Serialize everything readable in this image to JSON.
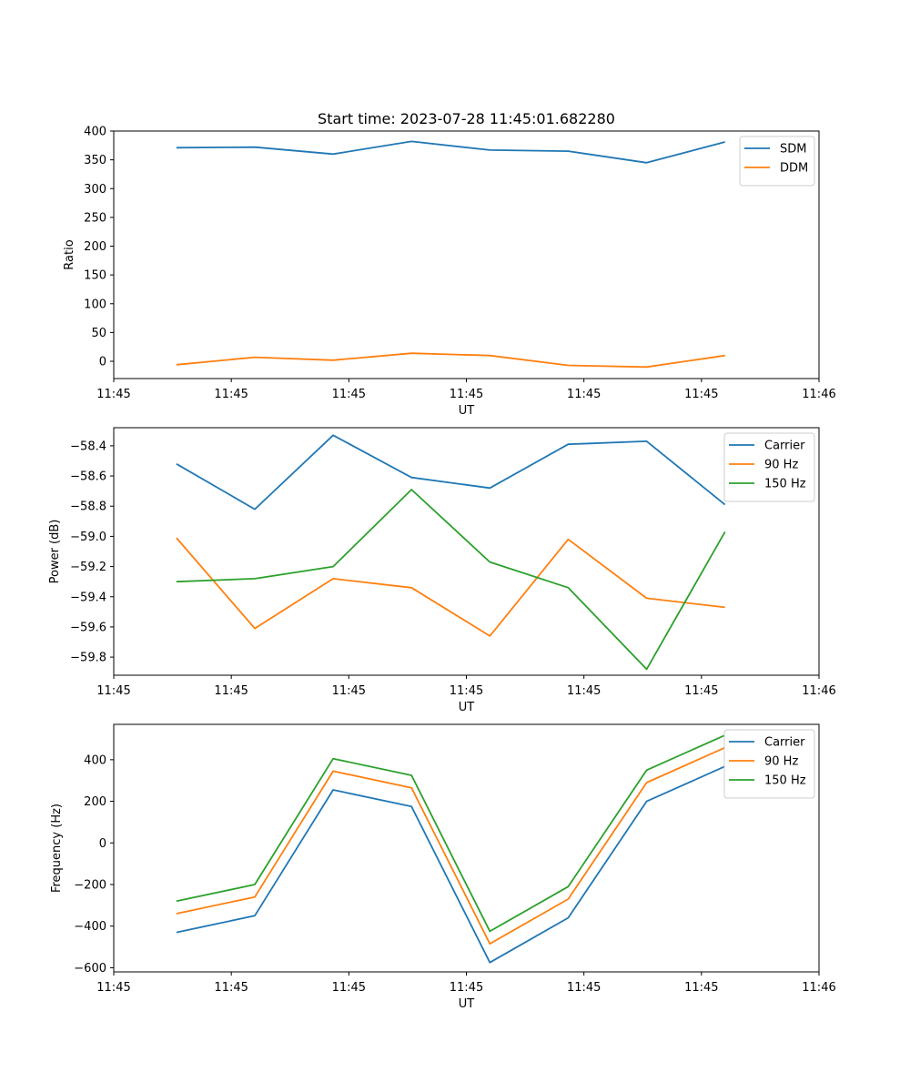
{
  "chart_data": [
    {
      "type": "line",
      "title": "Start time: 2023-07-28 11:45:01.682280",
      "xlabel": "UT",
      "ylabel": "Ratio",
      "x": [
        1,
        2,
        3,
        4,
        5,
        6,
        7,
        8
      ],
      "xlim": [
        0.2,
        9.2
      ],
      "xticks": [
        0.2,
        1.7,
        3.2,
        4.7,
        6.2,
        7.7,
        9.2
      ],
      "xtick_labels": [
        "11:45",
        "11:45",
        "11:45",
        "11:45",
        "11:45",
        "11:45",
        "11:46"
      ],
      "ylim": [
        -30,
        400
      ],
      "yticks": [
        0,
        50,
        100,
        150,
        200,
        250,
        300,
        350,
        400
      ],
      "legend_position": "top-right",
      "series": [
        {
          "name": "SDM",
          "color": "#1f77b4",
          "values": [
            371,
            372,
            360,
            382,
            367,
            365,
            345,
            381
          ]
        },
        {
          "name": "DDM",
          "color": "#ff7f0e",
          "values": [
            -6,
            7,
            2,
            14,
            10,
            -7,
            -10,
            10
          ]
        }
      ]
    },
    {
      "type": "line",
      "title": "",
      "xlabel": "UT",
      "ylabel": "Power (dB)",
      "x": [
        1,
        2,
        3,
        4,
        5,
        6,
        7,
        8
      ],
      "xlim": [
        0.2,
        9.2
      ],
      "xticks": [
        0.2,
        1.7,
        3.2,
        4.7,
        6.2,
        7.7,
        9.2
      ],
      "xtick_labels": [
        "11:45",
        "11:45",
        "11:45",
        "11:45",
        "11:45",
        "11:45",
        "11:46"
      ],
      "ylim": [
        -59.92,
        -58.28
      ],
      "yticks": [
        -59.8,
        -59.6,
        -59.4,
        -59.2,
        -59.0,
        -58.8,
        -58.6,
        -58.4
      ],
      "ytick_labels": [
        "−59.8",
        "−59.6",
        "−59.4",
        "−59.2",
        "−59.0",
        "−58.8",
        "−58.6",
        "−58.4"
      ],
      "legend_position": "top-right",
      "series": [
        {
          "name": "Carrier",
          "color": "#1f77b4",
          "values": [
            -58.52,
            -58.82,
            -58.33,
            -58.61,
            -58.68,
            -58.39,
            -58.37,
            -58.79
          ]
        },
        {
          "name": "90 Hz",
          "color": "#ff7f0e",
          "values": [
            -59.01,
            -59.61,
            -59.28,
            -59.34,
            -59.66,
            -59.02,
            -59.41,
            -59.47
          ]
        },
        {
          "name": "150 Hz",
          "color": "#2ca02c",
          "values": [
            -59.3,
            -59.28,
            -59.2,
            -58.69,
            -59.17,
            -59.34,
            -59.88,
            -58.97
          ]
        }
      ]
    },
    {
      "type": "line",
      "title": "",
      "xlabel": "UT",
      "ylabel": "Frequency (Hz)",
      "x": [
        1,
        2,
        3,
        4,
        5,
        6,
        7,
        8
      ],
      "xlim": [
        0.2,
        9.2
      ],
      "xticks": [
        0.2,
        1.7,
        3.2,
        4.7,
        6.2,
        7.7,
        9.2
      ],
      "xtick_labels": [
        "11:45",
        "11:45",
        "11:45",
        "11:45",
        "11:45",
        "11:45",
        "11:46"
      ],
      "ylim": [
        -620,
        570
      ],
      "yticks": [
        -600,
        -400,
        -200,
        0,
        200,
        400
      ],
      "ytick_labels": [
        "−600",
        "−400",
        "−200",
        "0",
        "200",
        "400"
      ],
      "legend_position": "top-right",
      "series": [
        {
          "name": "Carrier",
          "color": "#1f77b4",
          "values": [
            -430,
            -350,
            255,
            175,
            -575,
            -360,
            200,
            368
          ]
        },
        {
          "name": "90 Hz",
          "color": "#ff7f0e",
          "values": [
            -340,
            -260,
            345,
            265,
            -485,
            -270,
            290,
            458
          ]
        },
        {
          "name": "150 Hz",
          "color": "#2ca02c",
          "values": [
            -280,
            -200,
            405,
            325,
            -425,
            -210,
            350,
            518
          ]
        }
      ]
    }
  ]
}
